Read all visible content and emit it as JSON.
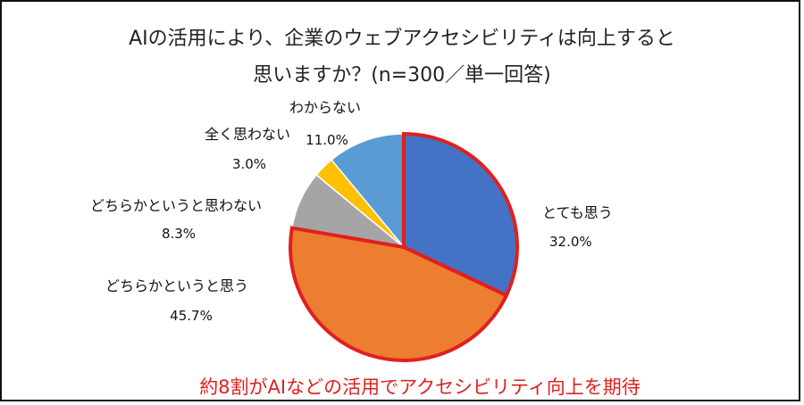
{
  "chart_data": {
    "type": "pie",
    "title_line1": "AIの活用により、企業のウェブアクセシビリティは向上すると",
    "title_line2": "思いますか？(n=300／単一回答)",
    "categories": [
      "とても思う",
      "どちらかというと思う",
      "どちらかというと思わない",
      "全く思わない",
      "わからない"
    ],
    "values": [
      32.0,
      45.7,
      8.3,
      3.0,
      11.0
    ],
    "value_labels": [
      "32.0%",
      "45.7%",
      "8.3%",
      "3.0%",
      "11.0%"
    ],
    "colors": [
      "#4472c4",
      "#ed7d31",
      "#a5a5a5",
      "#ffc000",
      "#5b9bd5"
    ],
    "highlighted_categories": [
      "とても思う",
      "どちらかというと思う"
    ],
    "highlight_color": "#e0201f",
    "annotation": "約8割がAIなどの活用でアクセシビリティ向上を期待"
  }
}
